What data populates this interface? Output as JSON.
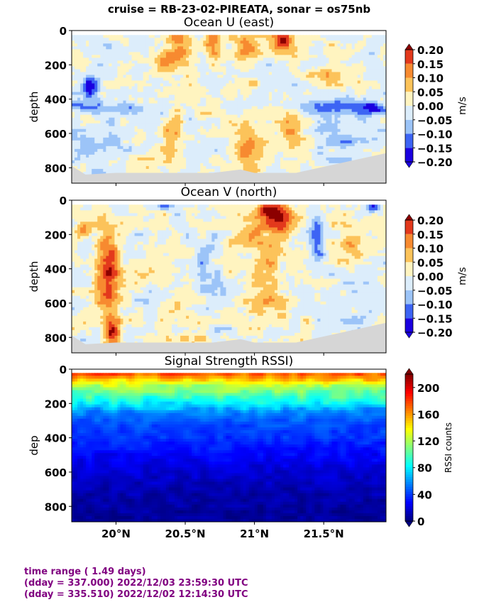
{
  "suptitle": "cruise = RB-23-02-PIREATA,  sonar = os75nb",
  "footer": {
    "line1": "time range ( 1.49 days)",
    "line2": "(dday = 337.000) 2022/12/03 23:59:30 UTC",
    "line3": "(dday = 335.510) 2022/12/02 12:14:30 UTC"
  },
  "colors": {
    "no_data": "#d6d6d6",
    "footer_text": "#800080"
  },
  "chart_data": [
    {
      "type": "heatmap",
      "title": "Ocean U (east)",
      "ylabel": "depth",
      "xlim": [
        19.68,
        21.95
      ],
      "ylim": [
        890,
        0
      ],
      "yticks": [
        0,
        200,
        400,
        600,
        800
      ],
      "xticks": [
        20.0,
        20.5,
        21.0,
        21.5
      ],
      "xtick_labels": [],
      "colorbar": {
        "label": "m/s",
        "range": [
          -0.2,
          0.2
        ],
        "ticks": [
          "0.20",
          "0.15",
          "0.10",
          "0.05",
          "0.00",
          "−0.05",
          "−0.10",
          "−0.15",
          "−0.20"
        ],
        "levels": [
          {
            "lo": -0.2,
            "hi": -0.15,
            "color": "#1a00e0"
          },
          {
            "lo": -0.15,
            "hi": -0.1,
            "color": "#3d64f4"
          },
          {
            "lo": -0.1,
            "hi": -0.05,
            "color": "#9cc4f8"
          },
          {
            "lo": -0.05,
            "hi": 0.0,
            "color": "#dcedfb"
          },
          {
            "lo": 0.0,
            "hi": 0.05,
            "color": "#fff4c0"
          },
          {
            "lo": 0.05,
            "hi": 0.1,
            "color": "#fcc35a"
          },
          {
            "lo": 0.1,
            "hi": 0.15,
            "color": "#f78a30"
          },
          {
            "lo": 0.15,
            "hi": 0.2,
            "color": "#e3391c"
          },
          {
            "lo": 0.2,
            "hi": 0.3,
            "color": "#8c0000"
          }
        ]
      },
      "features": [
        {
          "x": 19.82,
          "depth": 330,
          "value": -0.16,
          "sx": 0.05,
          "sd": 60
        },
        {
          "x": 19.75,
          "depth": 440,
          "value": -0.13,
          "sx": 0.08,
          "sd": 25
        },
        {
          "x": 20.1,
          "depth": 450,
          "value": -0.1,
          "sx": 0.12,
          "sd": 25
        },
        {
          "x": 21.5,
          "depth": 440,
          "value": -0.12,
          "sx": 0.15,
          "sd": 30
        },
        {
          "x": 21.85,
          "depth": 450,
          "value": -0.15,
          "sx": 0.08,
          "sd": 25
        },
        {
          "x": 20.45,
          "depth": 80,
          "value": 0.12,
          "sx": 0.06,
          "sd": 60
        },
        {
          "x": 20.7,
          "depth": 70,
          "value": 0.16,
          "sx": 0.04,
          "sd": 50
        },
        {
          "x": 20.95,
          "depth": 90,
          "value": 0.14,
          "sx": 0.08,
          "sd": 55
        },
        {
          "x": 21.2,
          "depth": 60,
          "value": 0.24,
          "sx": 0.05,
          "sd": 50
        },
        {
          "x": 20.4,
          "depth": 650,
          "value": 0.11,
          "sx": 0.05,
          "sd": 100
        },
        {
          "x": 20.95,
          "depth": 680,
          "value": 0.12,
          "sx": 0.07,
          "sd": 110
        },
        {
          "x": 21.25,
          "depth": 580,
          "value": 0.08,
          "sx": 0.06,
          "sd": 80
        },
        {
          "x": 20.35,
          "depth": 190,
          "value": 0.1,
          "sx": 0.06,
          "sd": 50
        },
        {
          "x": 21.55,
          "depth": 250,
          "value": 0.06,
          "sx": 0.1,
          "sd": 80
        },
        {
          "x": 19.9,
          "depth": 700,
          "value": -0.07,
          "sx": 0.12,
          "sd": 120
        },
        {
          "x": 21.7,
          "depth": 650,
          "value": -0.06,
          "sx": 0.15,
          "sd": 120
        }
      ],
      "bottom_depth": [
        {
          "x": 19.68,
          "depth": 790
        },
        {
          "x": 19.78,
          "depth": 840
        },
        {
          "x": 20.0,
          "depth": 830
        },
        {
          "x": 20.7,
          "depth": 830
        },
        {
          "x": 20.9,
          "depth": 810
        },
        {
          "x": 21.0,
          "depth": 830
        },
        {
          "x": 21.3,
          "depth": 830
        },
        {
          "x": 21.95,
          "depth": 715
        }
      ]
    },
    {
      "type": "heatmap",
      "title": "Ocean V (north)",
      "ylabel": "depth",
      "xlim": [
        19.68,
        21.95
      ],
      "ylim": [
        890,
        0
      ],
      "yticks": [
        0,
        200,
        400,
        600,
        800
      ],
      "xticks": [
        20.0,
        20.5,
        21.0,
        21.5
      ],
      "xtick_labels": [],
      "colorbar": {
        "label": "m/s",
        "range": [
          -0.2,
          0.2
        ],
        "ticks": [
          "0.20",
          "0.15",
          "0.10",
          "0.05",
          "0.00",
          "−0.05",
          "−0.10",
          "−0.15",
          "−0.20"
        ],
        "levels": [
          {
            "lo": -0.2,
            "hi": -0.15,
            "color": "#1a00e0"
          },
          {
            "lo": -0.15,
            "hi": -0.1,
            "color": "#3d64f4"
          },
          {
            "lo": -0.1,
            "hi": -0.05,
            "color": "#9cc4f8"
          },
          {
            "lo": -0.05,
            "hi": 0.0,
            "color": "#dcedfb"
          },
          {
            "lo": 0.0,
            "hi": 0.05,
            "color": "#fff4c0"
          },
          {
            "lo": 0.05,
            "hi": 0.1,
            "color": "#fcc35a"
          },
          {
            "lo": 0.1,
            "hi": 0.15,
            "color": "#f78a30"
          },
          {
            "lo": 0.15,
            "hi": 0.2,
            "color": "#e3391c"
          },
          {
            "lo": 0.2,
            "hi": 0.3,
            "color": "#8c0000"
          }
        ]
      },
      "features": [
        {
          "x": 19.95,
          "depth": 420,
          "value": 0.2,
          "sx": 0.06,
          "sd": 200
        },
        {
          "x": 19.98,
          "depth": 780,
          "value": 0.16,
          "sx": 0.04,
          "sd": 60
        },
        {
          "x": 19.75,
          "depth": 180,
          "value": 0.12,
          "sx": 0.04,
          "sd": 30
        },
        {
          "x": 21.1,
          "depth": 60,
          "value": 0.24,
          "sx": 0.05,
          "sd": 40
        },
        {
          "x": 21.2,
          "depth": 110,
          "value": 0.17,
          "sx": 0.06,
          "sd": 60
        },
        {
          "x": 20.35,
          "depth": 30,
          "value": -0.18,
          "sx": 0.04,
          "sd": 20
        },
        {
          "x": 21.45,
          "depth": 200,
          "value": -0.15,
          "sx": 0.04,
          "sd": 110
        },
        {
          "x": 21.85,
          "depth": 40,
          "value": -0.12,
          "sx": 0.05,
          "sd": 25
        },
        {
          "x": 21.1,
          "depth": 450,
          "value": 0.08,
          "sx": 0.08,
          "sd": 250
        },
        {
          "x": 20.6,
          "depth": 500,
          "value": -0.05,
          "sx": 0.12,
          "sd": 200
        },
        {
          "x": 20.55,
          "depth": 700,
          "value": 0.07,
          "sx": 0.08,
          "sd": 120
        },
        {
          "x": 21.7,
          "depth": 250,
          "value": 0.08,
          "sx": 0.05,
          "sd": 80
        },
        {
          "x": 20.95,
          "depth": 200,
          "value": 0.08,
          "sx": 0.1,
          "sd": 80
        },
        {
          "x": 21.75,
          "depth": 650,
          "value": -0.04,
          "sx": 0.12,
          "sd": 150
        }
      ],
      "bottom_depth": [
        {
          "x": 19.68,
          "depth": 790
        },
        {
          "x": 19.78,
          "depth": 840
        },
        {
          "x": 20.0,
          "depth": 830
        },
        {
          "x": 20.7,
          "depth": 830
        },
        {
          "x": 20.9,
          "depth": 810
        },
        {
          "x": 21.0,
          "depth": 830
        },
        {
          "x": 21.3,
          "depth": 830
        },
        {
          "x": 21.95,
          "depth": 715
        }
      ]
    },
    {
      "type": "heatmap",
      "title": "Signal Strength RSSI)",
      "ylabel": "dep",
      "xlim": [
        19.68,
        21.95
      ],
      "ylim": [
        890,
        0
      ],
      "yticks": [
        0,
        200,
        400,
        600,
        800
      ],
      "xticks": [
        20.0,
        20.5,
        21.0,
        21.5
      ],
      "xtick_labels": [
        "20°N",
        "20.5°N",
        "21°N",
        "21.5°N"
      ],
      "colorbar": {
        "label": "RSSI counts",
        "range": [
          0,
          220
        ],
        "ticks": [
          "200",
          "160",
          "120",
          "80",
          "40",
          "0"
        ],
        "colormap": "jet"
      },
      "profile": [
        {
          "depth": 20,
          "value": 180
        },
        {
          "depth": 60,
          "value": 150
        },
        {
          "depth": 100,
          "value": 120
        },
        {
          "depth": 150,
          "value": 100
        },
        {
          "depth": 200,
          "value": 82
        },
        {
          "depth": 240,
          "value": 60
        },
        {
          "depth": 300,
          "value": 46
        },
        {
          "depth": 400,
          "value": 38
        },
        {
          "depth": 500,
          "value": 27
        },
        {
          "depth": 600,
          "value": 18
        },
        {
          "depth": 700,
          "value": 11
        },
        {
          "depth": 800,
          "value": 7
        },
        {
          "depth": 890,
          "value": 5
        }
      ]
    }
  ]
}
